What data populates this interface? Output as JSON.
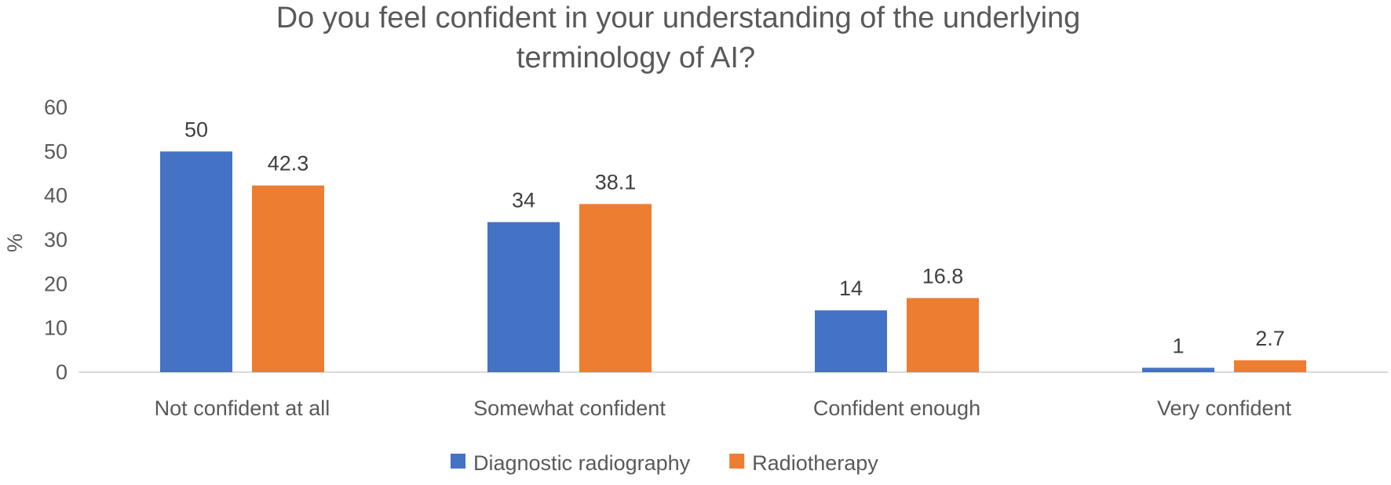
{
  "chart_data": {
    "type": "bar",
    "title_lines": [
      "Do you feel confident in your understanding of the underlying",
      "terminology of AI?"
    ],
    "xlabel": "",
    "ylabel": "%",
    "ylim": [
      0,
      60
    ],
    "yticks": [
      0,
      10,
      20,
      30,
      40,
      50,
      60
    ],
    "grid": false,
    "legend_position": "bottom",
    "categories": [
      "Not confident at all",
      "Somewhat confident",
      "Confident enough",
      "Very confident"
    ],
    "series": [
      {
        "name": "Diagnostic radiography",
        "color": "#4472C4",
        "values": [
          50,
          34,
          14,
          1
        ]
      },
      {
        "name": "Radiotherapy",
        "color": "#ED7D31",
        "values": [
          42.3,
          38.1,
          16.8,
          2.7
        ]
      }
    ]
  }
}
